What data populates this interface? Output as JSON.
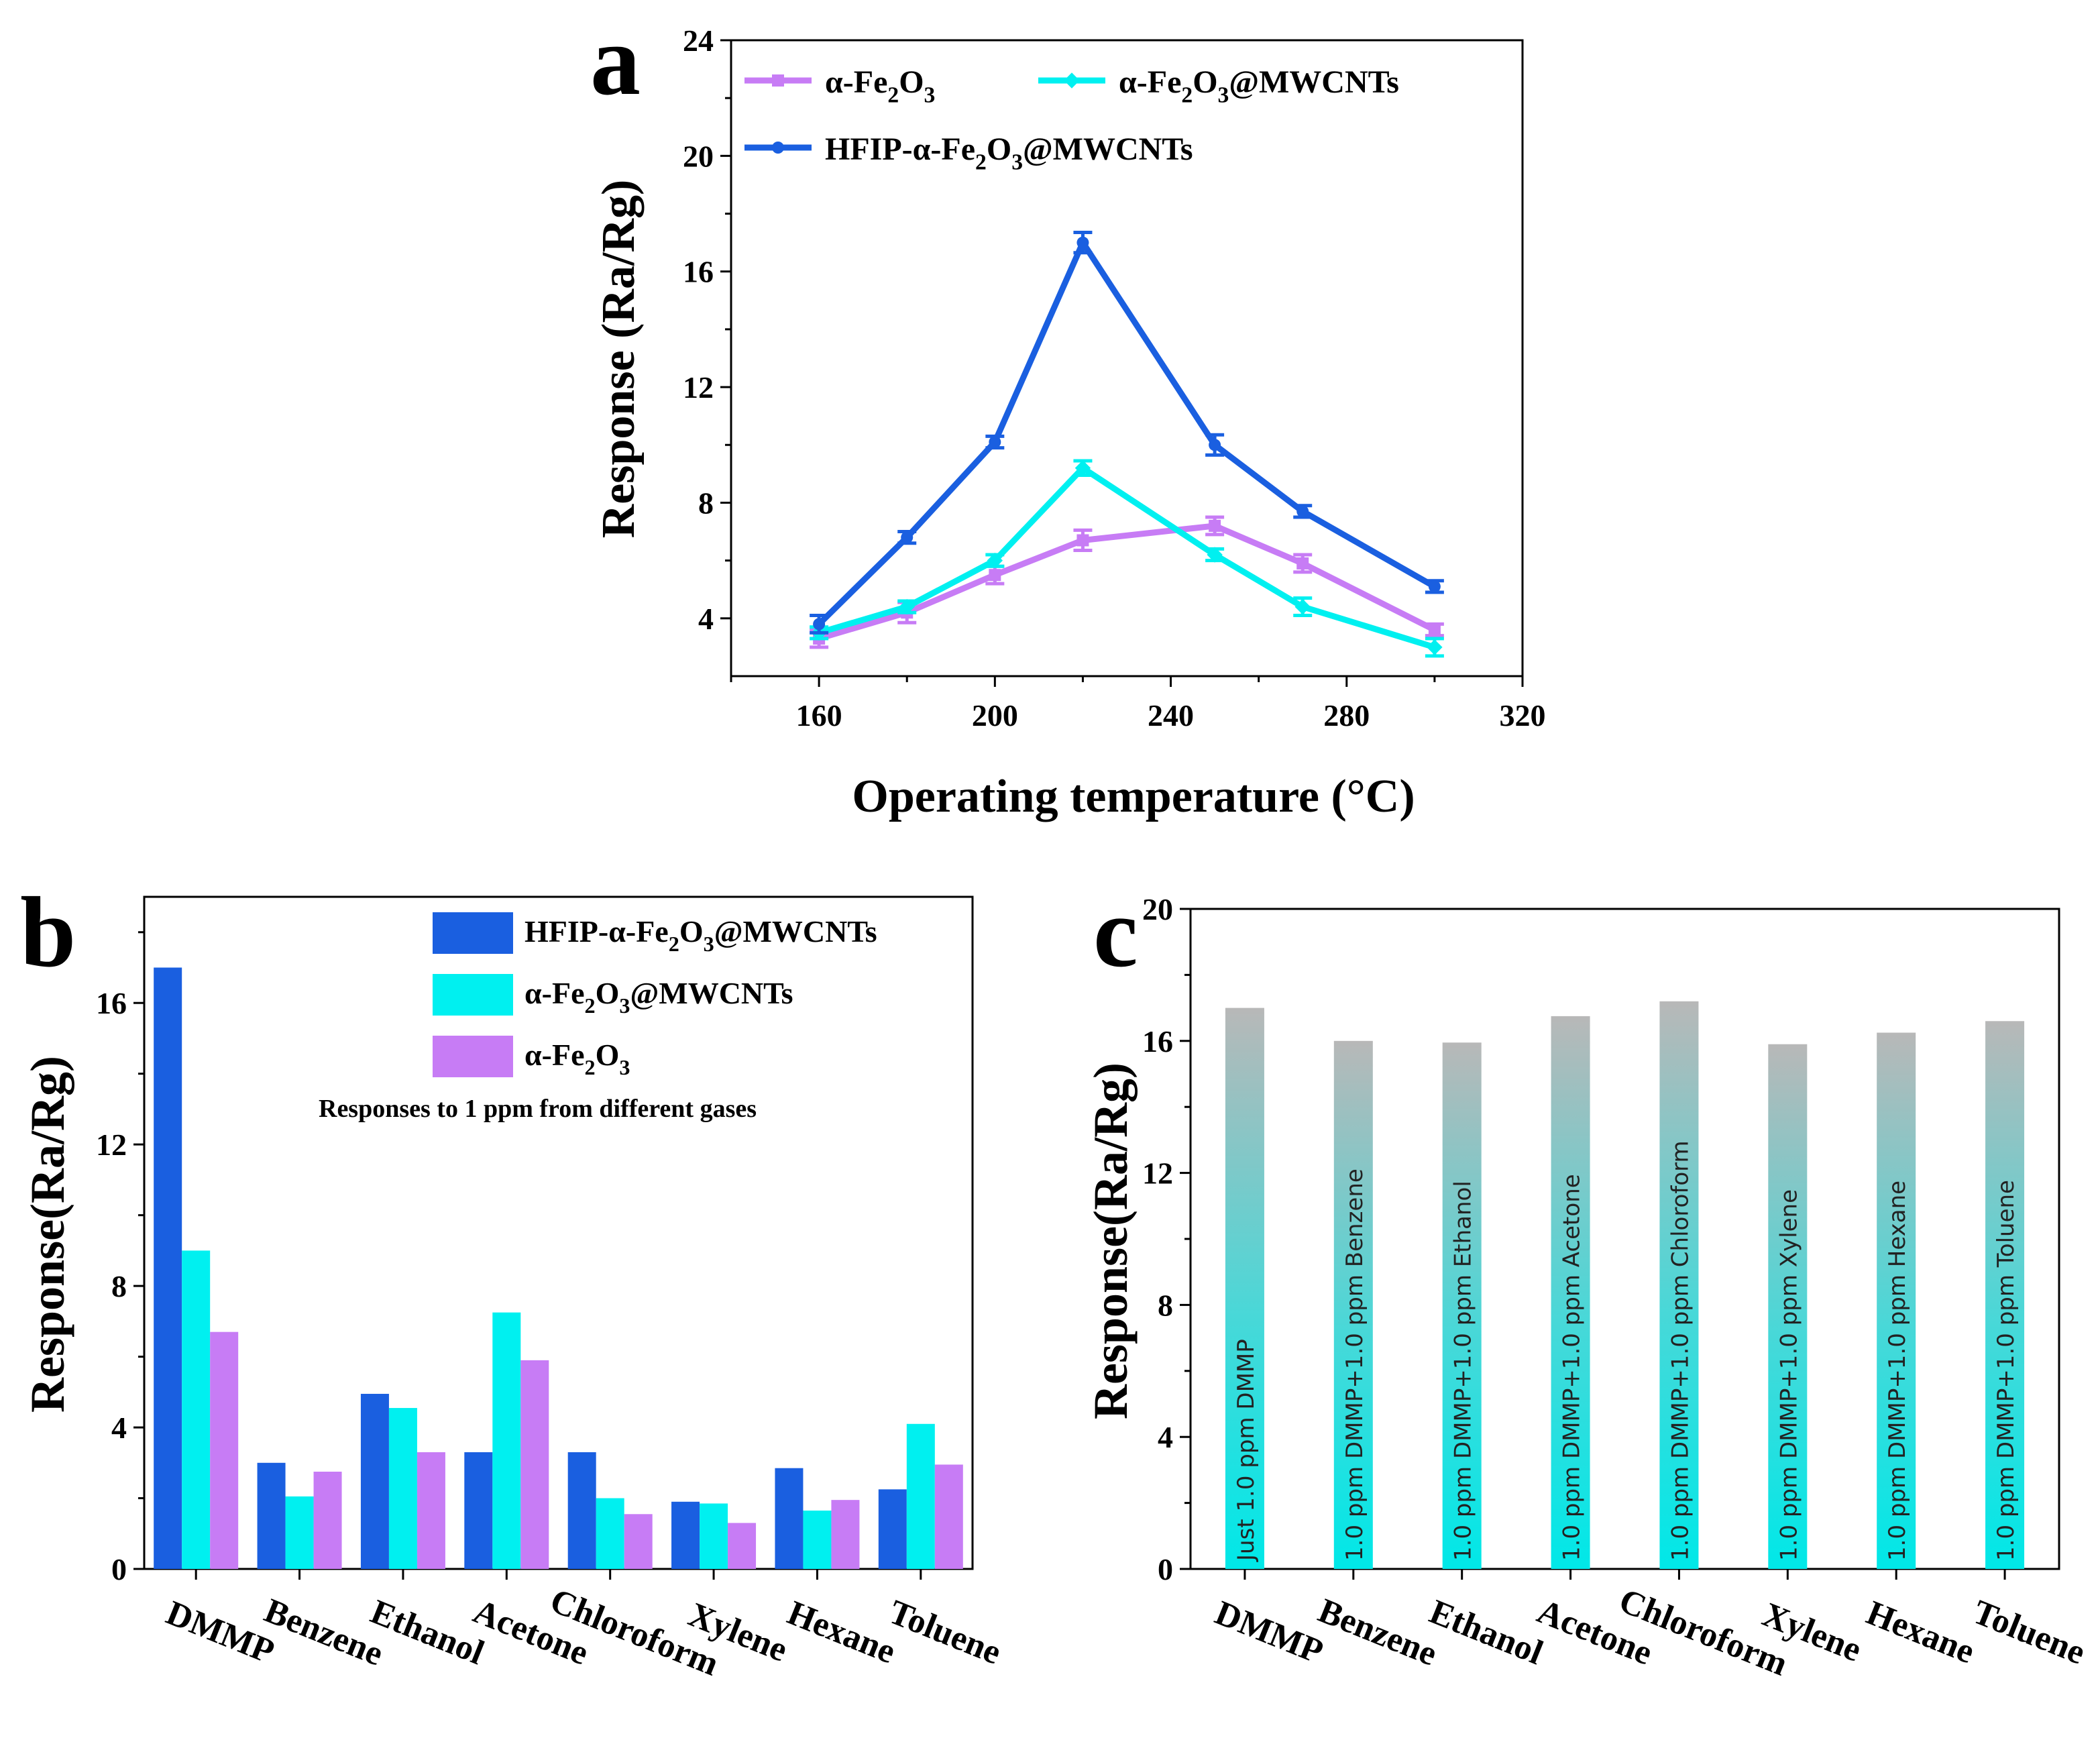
{
  "colors": {
    "hfip": "#1a5fe0",
    "mwcnt": "#00f0f0",
    "fe2o3": "#c77cf5",
    "bar_top": "#b8b8b8",
    "bar_bottom": "#00e8e8"
  },
  "chart_data": [
    {
      "id": "a",
      "panel_label": "a",
      "type": "line",
      "xlabel": "Operating temperature (°C)",
      "ylabel": "Response (Ra/Rg)",
      "xlim": [
        140,
        320
      ],
      "ylim": [
        2,
        24
      ],
      "xticks": [
        160,
        200,
        240,
        280,
        320
      ],
      "yticks": [
        4,
        8,
        12,
        16,
        20,
        24
      ],
      "x": [
        160,
        180,
        200,
        220,
        250,
        270,
        300
      ],
      "series": [
        {
          "name": "α-Fe2O3",
          "legend_label": "α-Fe",
          "sub1": "2",
          "mid": "O",
          "sub2": "3",
          "rest": "",
          "color_key": "fe2o3",
          "marker": "square",
          "values": [
            3.3,
            4.2,
            5.5,
            6.7,
            7.2,
            5.9,
            3.6
          ],
          "errors": [
            0.3,
            0.35,
            0.3,
            0.35,
            0.3,
            0.3,
            0.2
          ]
        },
        {
          "name": "α-Fe2O3@MWCNTs",
          "legend_label": "α-Fe",
          "sub1": "2",
          "mid": "O",
          "sub2": "3",
          "rest": "@MWCNTs",
          "color_key": "mwcnt",
          "marker": "diamond",
          "values": [
            3.5,
            4.4,
            6.0,
            9.2,
            6.2,
            4.4,
            3.0
          ],
          "errors": [
            0.2,
            0.2,
            0.2,
            0.25,
            0.2,
            0.3,
            0.3
          ]
        },
        {
          "name": "HFIP-α-Fe2O3@MWCNTs",
          "legend_label": "HFIP-α-Fe",
          "sub1": "2",
          "mid": "O",
          "sub2": "3",
          "rest": "@MWCNTs",
          "color_key": "hfip",
          "marker": "circle",
          "values": [
            3.8,
            6.8,
            10.1,
            17.0,
            10.0,
            7.7,
            5.1
          ],
          "errors": [
            0.3,
            0.2,
            0.2,
            0.35,
            0.35,
            0.2,
            0.2
          ]
        }
      ]
    },
    {
      "id": "b",
      "panel_label": "b",
      "type": "bar",
      "ylabel": "Response(Ra/Rg)",
      "ylim": [
        0,
        19
      ],
      "yticks": [
        0,
        4,
        8,
        12,
        16
      ],
      "categories": [
        "DMMP",
        "Benzene",
        "Ethanol",
        "Acetone",
        "Chloroform",
        "Xylene",
        "Hexane",
        "Toluene"
      ],
      "note": "Responses to 1 ppm from different gases",
      "series": [
        {
          "name": "HFIP-α-Fe2O3@MWCNTs",
          "legend_label": "HFIP-α-Fe",
          "sub1": "2",
          "mid": "O",
          "sub2": "3",
          "rest": "@MWCNTs",
          "color_key": "hfip",
          "values": [
            17.0,
            3.0,
            4.95,
            3.3,
            3.3,
            1.9,
            2.85,
            2.25
          ]
        },
        {
          "name": "α-Fe2O3@MWCNTs",
          "legend_label": "α-Fe",
          "sub1": "2",
          "mid": "O",
          "sub2": "3",
          "rest": "@MWCNTs",
          "color_key": "mwcnt",
          "values": [
            9.0,
            2.05,
            4.55,
            7.25,
            2.0,
            1.85,
            1.65,
            4.1
          ]
        },
        {
          "name": "α-Fe2O3",
          "legend_label": "α-Fe",
          "sub1": "2",
          "mid": "O",
          "sub2": "3",
          "rest": "",
          "color_key": "fe2o3",
          "values": [
            6.7,
            2.75,
            3.3,
            5.9,
            1.55,
            1.3,
            1.95,
            2.95
          ]
        }
      ]
    },
    {
      "id": "c",
      "panel_label": "c",
      "type": "bar",
      "ylabel": "Response(Ra/Rg)",
      "ylim": [
        0,
        20
      ],
      "yticks": [
        0,
        4,
        8,
        12,
        16,
        20
      ],
      "categories": [
        "DMMP",
        "Benzene",
        "Ethanol",
        "Acetone",
        "Chloroform",
        "Xylene",
        "Hexane",
        "Toluene"
      ],
      "values": [
        17.0,
        16.0,
        15.95,
        16.75,
        17.2,
        15.9,
        16.25,
        16.6
      ],
      "bar_labels": [
        "Just 1.0 ppm DMMP",
        "1.0 ppm DMMP+1.0 ppm Benzene",
        "1.0 ppm DMMP+1.0 ppm Ethanol",
        "1.0 ppm DMMP+1.0 ppm Acetone",
        "1.0 ppm DMMP+1.0 ppm Chloroform",
        "1.0 ppm DMMP+1.0 ppm Xylene",
        "1.0 ppm DMMP+1.0 ppm Hexane",
        "1.0 ppm DMMP+1.0 ppm Toluene"
      ]
    }
  ]
}
